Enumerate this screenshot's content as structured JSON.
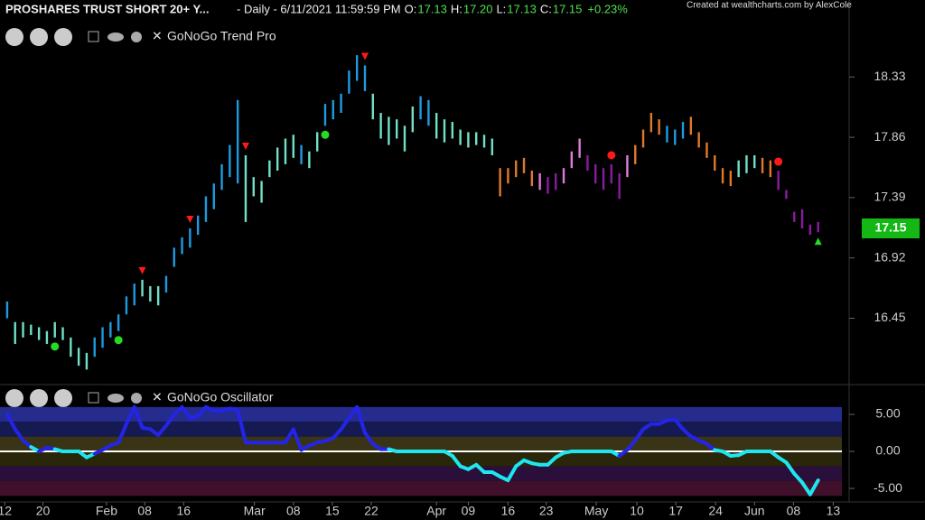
{
  "header": {
    "symbol": "PROSHARES TRUST SHORT 20+ Y...",
    "timeframe": "- Daily - 6/11/2021 11:59:59 PM",
    "ohlc": [
      {
        "label": "O:",
        "value": "17.13"
      },
      {
        "label": "H:",
        "value": "17.20"
      },
      {
        "label": "L:",
        "value": "17.13"
      },
      {
        "label": "C:",
        "value": "17.15"
      }
    ],
    "change": "+0.23%",
    "credit": "Created at wealthcharts.com by AlexCole"
  },
  "chart_data": [
    {
      "type": "ohlc",
      "title": "GoNoGo Trend Pro",
      "xlim": [
        -0.9,
        105.9
      ],
      "ylim": [
        15.94,
        18.93
      ],
      "yticks": [
        16.45,
        16.92,
        17.39,
        17.86,
        18.33
      ],
      "last_price": 17.15,
      "last_price_color": "#14b814",
      "low": [
        16.45,
        16.25,
        16.3,
        16.32,
        16.28,
        16.25,
        16.3,
        16.28,
        16.15,
        16.08,
        16.05,
        16.15,
        16.22,
        16.3,
        16.35,
        16.48,
        16.55,
        16.62,
        16.58,
        16.55,
        16.65,
        16.85,
        16.95,
        17.0,
        17.1,
        17.2,
        17.3,
        17.45,
        17.55,
        17.5,
        17.2,
        17.4,
        17.35,
        17.55,
        17.6,
        17.65,
        17.7,
        17.65,
        17.62,
        17.75,
        17.95,
        18.0,
        18.05,
        18.2,
        18.3,
        18.22,
        18.0,
        17.85,
        17.8,
        17.85,
        17.75,
        17.9,
        18.0,
        17.95,
        17.85,
        17.82,
        17.85,
        17.8,
        17.78,
        17.8,
        17.78,
        17.72,
        17.4,
        17.5,
        17.55,
        17.58,
        17.48,
        17.45,
        17.42,
        17.45,
        17.5,
        17.62,
        17.7,
        17.6,
        17.5,
        17.45,
        17.5,
        17.38,
        17.55,
        17.65,
        17.78,
        17.9,
        17.88,
        17.82,
        17.8,
        17.85,
        17.88,
        17.78,
        17.7,
        17.6,
        17.5,
        17.48,
        17.55,
        17.58,
        17.62,
        17.58,
        17.55,
        17.45,
        17.38,
        17.2,
        17.15,
        17.1,
        17.12
      ],
      "high": [
        16.58,
        16.42,
        16.42,
        16.4,
        16.38,
        16.35,
        16.42,
        16.38,
        16.3,
        16.22,
        16.18,
        16.3,
        16.38,
        16.42,
        16.48,
        16.62,
        16.72,
        16.75,
        16.7,
        16.7,
        16.78,
        17.0,
        17.08,
        17.15,
        17.25,
        17.4,
        17.5,
        17.65,
        17.8,
        18.15,
        17.72,
        17.55,
        17.52,
        17.68,
        17.78,
        17.85,
        17.88,
        17.8,
        17.75,
        17.9,
        18.12,
        18.15,
        18.2,
        18.38,
        18.5,
        18.42,
        18.2,
        18.05,
        18.02,
        18.0,
        17.95,
        18.1,
        18.18,
        18.15,
        18.05,
        18.0,
        17.98,
        17.92,
        17.9,
        17.9,
        17.88,
        17.85,
        17.62,
        17.62,
        17.68,
        17.7,
        17.6,
        17.58,
        17.55,
        17.58,
        17.62,
        17.75,
        17.85,
        17.72,
        17.65,
        17.62,
        17.65,
        17.58,
        17.72,
        17.8,
        17.92,
        18.05,
        18.0,
        17.95,
        17.92,
        17.98,
        18.02,
        17.9,
        17.82,
        17.72,
        17.62,
        17.6,
        17.68,
        17.72,
        17.72,
        17.7,
        17.68,
        17.6,
        17.45,
        17.28,
        17.3,
        17.18,
        17.2
      ],
      "colors": [
        "#1e9be0",
        "#70e0c8",
        "#70e0c8",
        "#70e0c8",
        "#70e0c8",
        "#70e0c8",
        "#70e0c8",
        "#70e0c8",
        "#70e0c8",
        "#70e0c8",
        "#70e0c8",
        "#1e9be0",
        "#1e9be0",
        "#1e9be0",
        "#1e9be0",
        "#1e9be0",
        "#1e9be0",
        "#70e0c8",
        "#70e0c8",
        "#70e0c8",
        "#1e9be0",
        "#1e9be0",
        "#1e9be0",
        "#1e9be0",
        "#1e9be0",
        "#1e9be0",
        "#1e9be0",
        "#1e9be0",
        "#1e9be0",
        "#1e9be0",
        "#70e0c8",
        "#70e0c8",
        "#70e0c8",
        "#70e0c8",
        "#70e0c8",
        "#70e0c8",
        "#70e0c8",
        "#1e9be0",
        "#70e0c8",
        "#70e0c8",
        "#1e9be0",
        "#1e9be0",
        "#1e9be0",
        "#1e9be0",
        "#1e9be0",
        "#1e9be0",
        "#70e0c8",
        "#70e0c8",
        "#70e0c8",
        "#70e0c8",
        "#70e0c8",
        "#70e0c8",
        "#1e9be0",
        "#1e9be0",
        "#70e0c8",
        "#70e0c8",
        "#70e0c8",
        "#70e0c8",
        "#70e0c8",
        "#70e0c8",
        "#70e0c8",
        "#70e0c8",
        "#e0782c",
        "#e0782c",
        "#e0782c",
        "#e0782c",
        "#e0782c",
        "#e07ad8",
        "#8c1aa0",
        "#8c1aa0",
        "#e07ad8",
        "#e07ad8",
        "#e07ad8",
        "#8c1aa0",
        "#8c1aa0",
        "#8c1aa0",
        "#8c1aa0",
        "#8c1aa0",
        "#e07ad8",
        "#e0782c",
        "#e0782c",
        "#e0782c",
        "#e0782c",
        "#1e9be0",
        "#1e9be0",
        "#1e9be0",
        "#e0782c",
        "#e0782c",
        "#e0782c",
        "#e0782c",
        "#e0782c",
        "#e0782c",
        "#70e0c8",
        "#70e0c8",
        "#70e0c8",
        "#e0782c",
        "#e0782c",
        "#8c1aa0",
        "#8c1aa0",
        "#8c1aa0",
        "#8c1aa0",
        "#8c1aa0",
        "#8c1aa0"
      ],
      "markers": [
        {
          "shape": "triangle-down",
          "side": "above",
          "color": "#ff1a1a",
          "x": [
            17,
            23,
            30,
            45
          ]
        },
        {
          "shape": "dot",
          "side": "below",
          "color": "#22dd22",
          "x": [
            6,
            14,
            40
          ]
        },
        {
          "shape": "dot",
          "side": "above",
          "color": "#ff1a1a",
          "x": [
            76,
            97
          ]
        },
        {
          "shape": "triangle-up",
          "side": "below",
          "color": "#22dd22",
          "x": [
            102
          ]
        }
      ]
    },
    {
      "type": "line",
      "title": "GoNoGo Oscillator",
      "xlim": [
        -0.9,
        105.9
      ],
      "ylim": [
        -6.7,
        8.54
      ],
      "yticks": [
        {
          "value": -5,
          "label": "-5.00"
        },
        {
          "value": 0,
          "label": "0.00"
        },
        {
          "value": 5,
          "label": "5.00"
        }
      ],
      "xticks": [
        {
          "value": -0.3,
          "label": "12"
        },
        {
          "value": 4.5,
          "label": "20"
        },
        {
          "value": 12.5,
          "label": "Feb"
        },
        {
          "value": 17.3,
          "label": "08"
        },
        {
          "value": 22.2,
          "label": "16"
        },
        {
          "value": 31.1,
          "label": "Mar"
        },
        {
          "value": 36,
          "label": "08"
        },
        {
          "value": 40.9,
          "label": "15"
        },
        {
          "value": 45.8,
          "label": "22"
        },
        {
          "value": 54,
          "label": "Apr"
        },
        {
          "value": 58,
          "label": "09"
        },
        {
          "value": 63,
          "label": "16"
        },
        {
          "value": 67.8,
          "label": "23"
        },
        {
          "value": 74.1,
          "label": "May"
        },
        {
          "value": 79.2,
          "label": "10"
        },
        {
          "value": 84.1,
          "label": "17"
        },
        {
          "value": 89.1,
          "label": "24"
        },
        {
          "value": 94,
          "label": "Jun"
        },
        {
          "value": 98.9,
          "label": "08"
        },
        {
          "value": 103.9,
          "label": "13"
        }
      ],
      "bands": [
        {
          "from": 4,
          "to": 6,
          "color": "#252c8e"
        },
        {
          "from": 2,
          "to": 4,
          "color": "#151a52"
        },
        {
          "from": 0,
          "to": 2,
          "color": "#3a3416"
        },
        {
          "from": -2,
          "to": 0,
          "color": "#2a2609"
        },
        {
          "from": -4,
          "to": -2,
          "color": "#2a0f3a"
        },
        {
          "from": -6,
          "to": -4,
          "color": "#40102a"
        }
      ],
      "color_positive": "#2424e6",
      "color_negative": "#1ee6f0",
      "zero_line": true,
      "values": [
        5.0,
        3.0,
        1.5,
        0.6,
        0.0,
        0.5,
        0.3,
        0.0,
        0.0,
        0.0,
        -0.8,
        -0.3,
        0.2,
        0.8,
        1.2,
        3.7,
        6.0,
        3.2,
        3.0,
        2.2,
        3.5,
        5.0,
        6.0,
        4.5,
        4.8,
        6.0,
        5.5,
        5.5,
        5.8,
        5.6,
        1.2,
        1.2,
        1.2,
        1.2,
        1.2,
        1.2,
        3.0,
        0.2,
        0.8,
        1.2,
        1.4,
        1.8,
        3.0,
        4.5,
        6.0,
        2.5,
        1.0,
        0.3,
        0.3,
        0.0,
        0.0,
        0.0,
        0.0,
        0.0,
        0.0,
        0.0,
        -0.6,
        -2.0,
        -2.4,
        -1.8,
        -2.8,
        -2.8,
        -3.4,
        -3.9,
        -2.0,
        -1.2,
        -1.6,
        -1.8,
        -1.8,
        -0.8,
        -0.2,
        0.0,
        0.0,
        0.0,
        0.0,
        0.0,
        0.0,
        -0.6,
        0.2,
        1.5,
        3.0,
        3.7,
        3.7,
        4.2,
        4.3,
        3.0,
        2.0,
        1.5,
        1.0,
        0.2,
        0.0,
        -0.6,
        -0.5,
        0.0,
        0.0,
        0.0,
        0.0,
        -0.8,
        -1.5,
        -3.0,
        -4.2,
        -5.8,
        -3.9
      ]
    }
  ]
}
